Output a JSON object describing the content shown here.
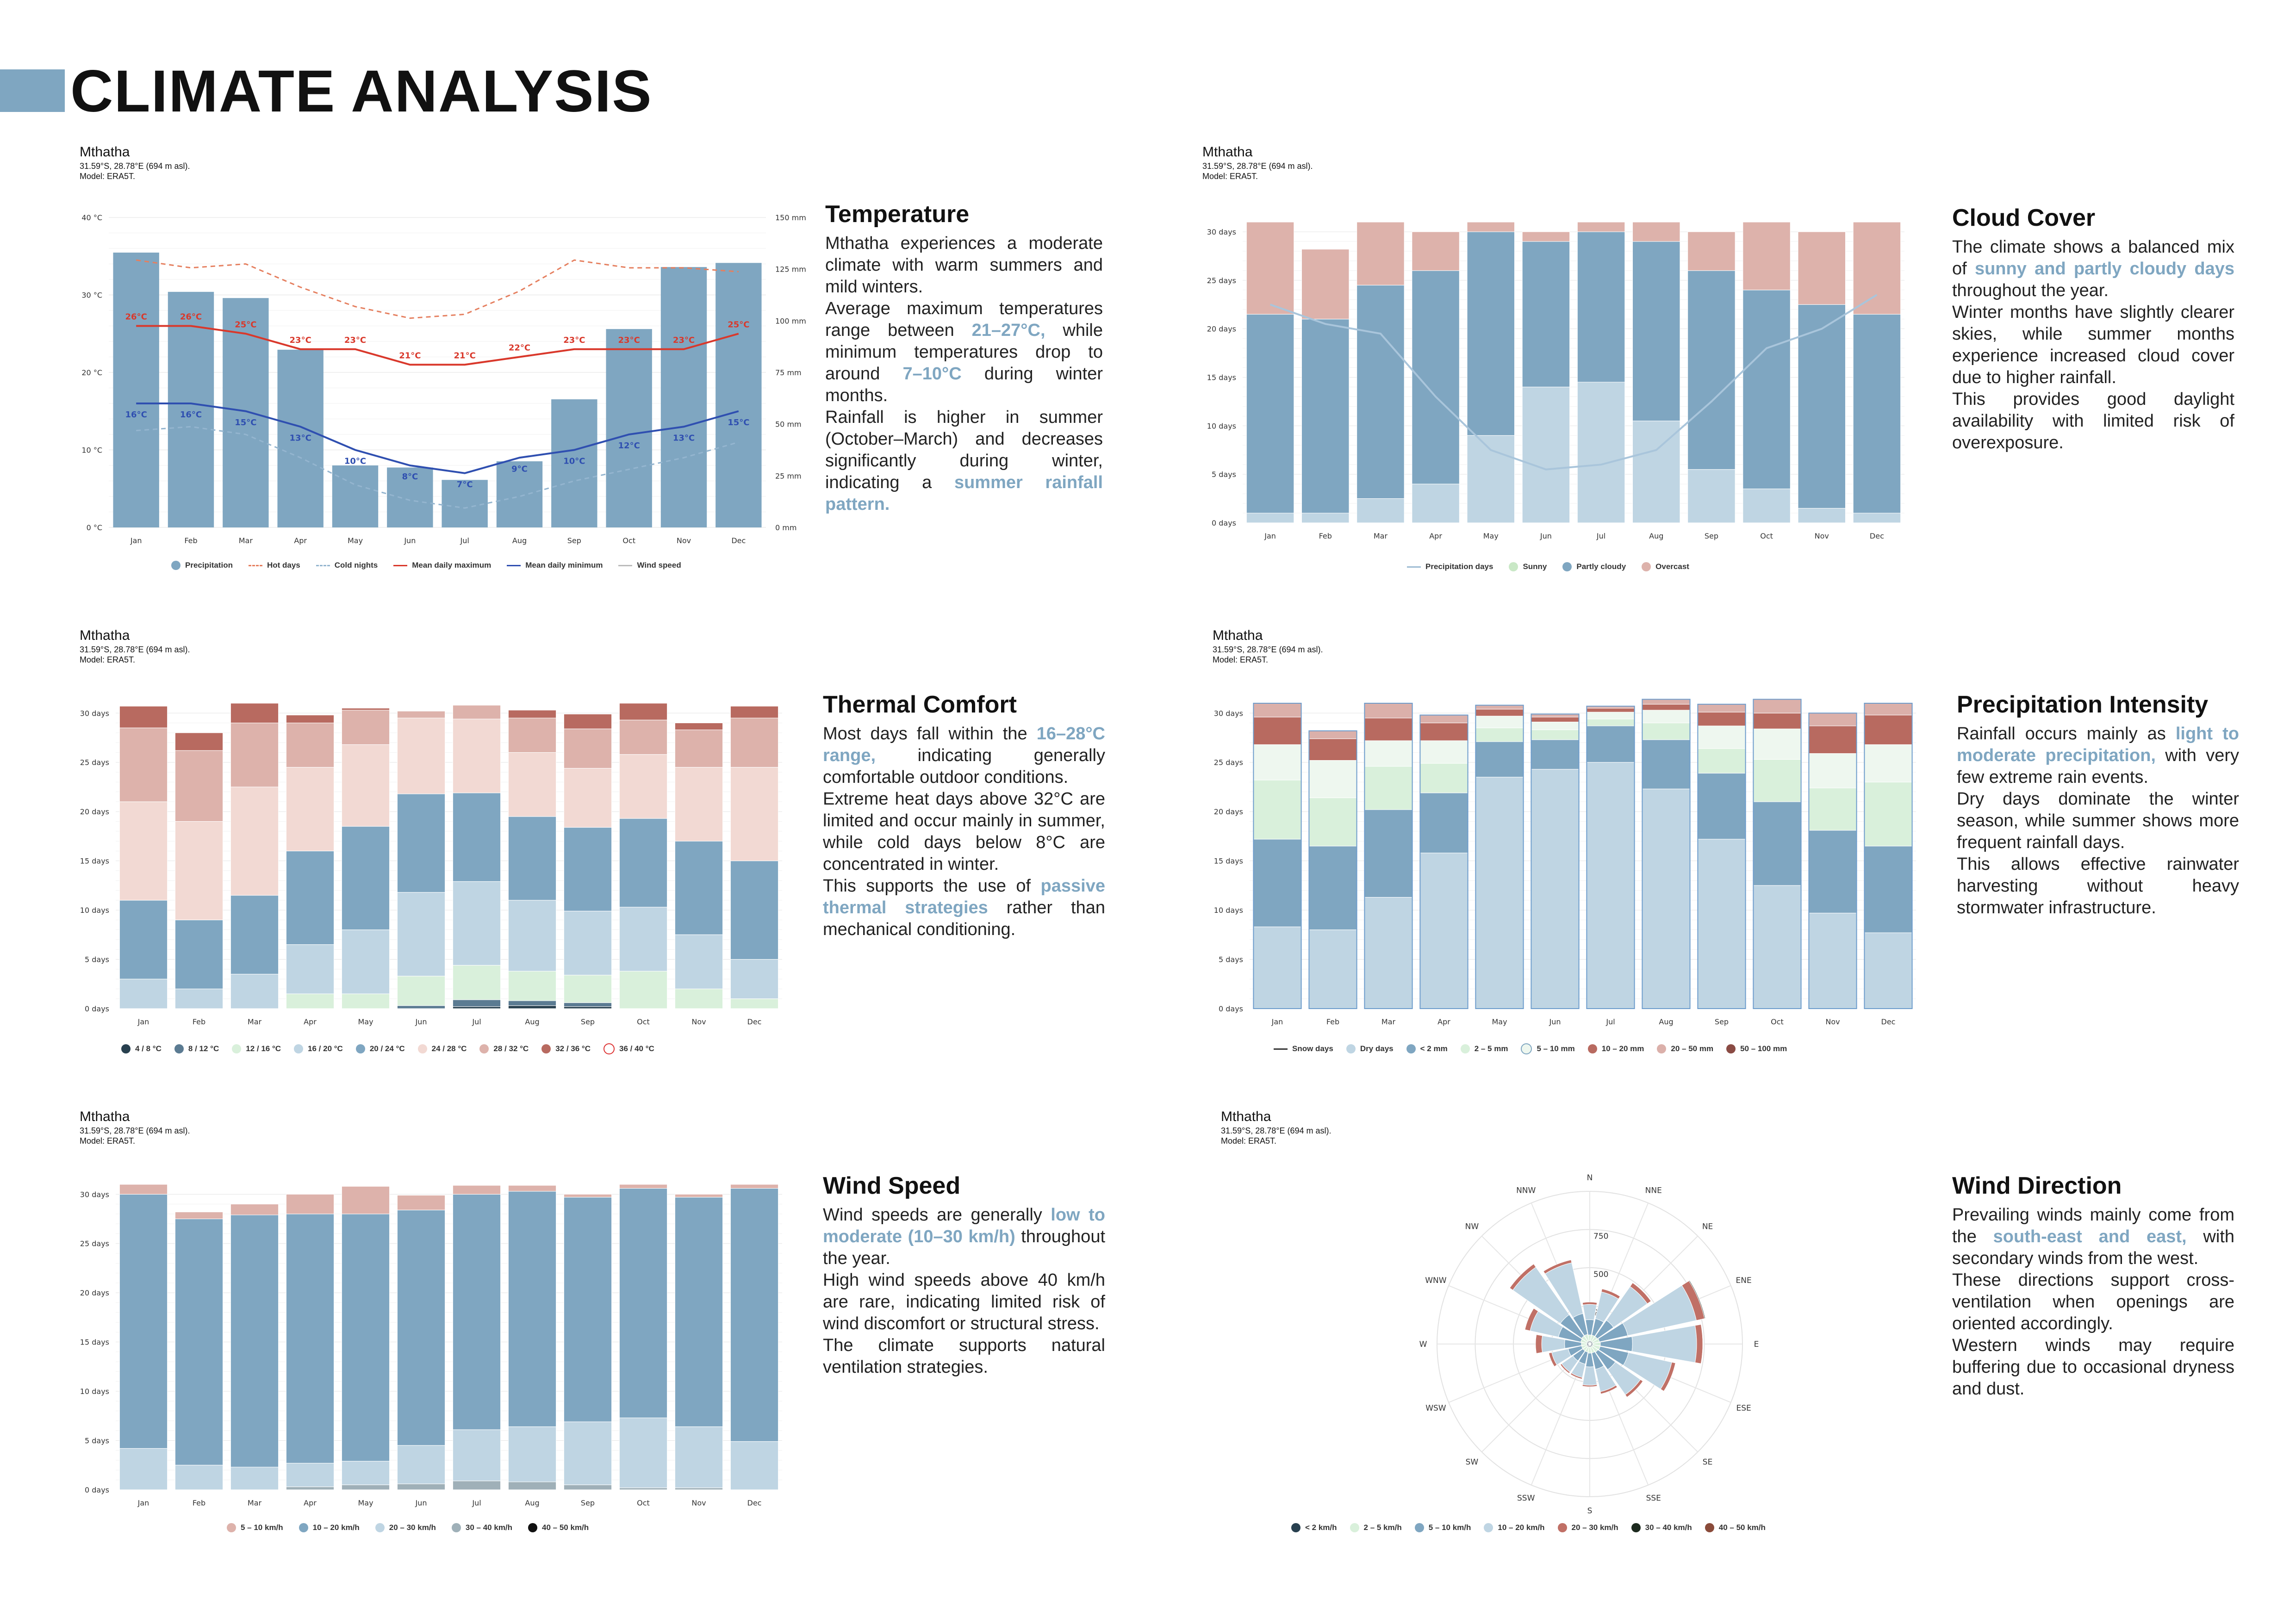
{
  "page": {
    "title": "CLIMATE ANALYSIS"
  },
  "colors": {
    "accent": "#7fa6c1",
    "hot": "#e57f5f",
    "max": "#d9382b",
    "min": "#2f4fb0",
    "cold": "#94b5cf"
  },
  "station": {
    "name": "Mthatha",
    "coords": "31.59°S, 28.78°E (694 m asl).",
    "model": "Model: ERA5T."
  },
  "temperature": {
    "heading": "Temperature",
    "text": [
      {
        "t": "Mthatha experiences a moderate climate with warm summers and mild winters.",
        "h": false
      },
      {
        "t": "Average maximum temperatures range between ",
        "h": false
      },
      {
        "t": "21–27°C,",
        "h": true
      },
      {
        "t": " while minimum temperatures drop to around ",
        "h": false
      },
      {
        "t": "7–10°C",
        "h": true
      },
      {
        "t": " during winter months.",
        "h": false
      },
      {
        "t": "Rainfall is higher in summer (October–March) and decreases significantly during winter, indicating a ",
        "h": false
      },
      {
        "t": "summer rainfall pattern.",
        "h": true
      }
    ],
    "legend": [
      "Precipitation",
      "Hot days",
      "Cold nights",
      "Mean daily maximum",
      "Mean daily minimum",
      "Wind speed"
    ],
    "y_left_ticks": [
      "0 °C",
      "10 °C",
      "20 °C",
      "30 °C",
      "40 °C"
    ],
    "y_right_ticks": [
      "0 mm",
      "25 mm",
      "50 mm",
      "75 mm",
      "100 mm",
      "125 mm",
      "150 mm"
    ]
  },
  "cloud": {
    "heading": "Cloud Cover",
    "text": [
      {
        "t": "The climate shows a balanced mix of ",
        "h": false
      },
      {
        "t": "sunny and partly cloudy days",
        "h": true
      },
      {
        "t": " throughout the year.",
        "h": false
      },
      {
        "t": "Winter months have slightly clearer skies, while summer months experience increased cloud cover due to higher rainfall.",
        "h": false
      },
      {
        "t": "This provides good daylight availability with limited risk of overexposure.",
        "h": false
      }
    ],
    "legend": [
      "Precipitation days",
      "Sunny",
      "Partly cloudy",
      "Overcast"
    ]
  },
  "thermal": {
    "heading": "Thermal Comfort",
    "text": [
      {
        "t": "Most days fall within the ",
        "h": false
      },
      {
        "t": "16–28°C range,",
        "h": true
      },
      {
        "t": " indicating generally comfortable outdoor conditions.",
        "h": false
      },
      {
        "t": "Extreme heat days above 32°C are limited and occur mainly in summer, while cold days below 8°C are concentrated in winter.",
        "h": false
      },
      {
        "t": "This supports the use of ",
        "h": false
      },
      {
        "t": "passive thermal strategies",
        "h": true
      },
      {
        "t": " rather than mechanical conditioning.",
        "h": false
      }
    ],
    "legend": [
      "4 / 8 °C",
      "8 / 12 °C",
      "12 / 16 °C",
      "16 / 20 °C",
      "20 / 24 °C",
      "24 / 28 °C",
      "28 / 32 °C",
      "32 / 36 °C",
      "36 / 40 °C"
    ]
  },
  "precip": {
    "heading": "Precipitation Intensity",
    "text": [
      {
        "t": "Rainfall occurs mainly as ",
        "h": false
      },
      {
        "t": "light to moderate precipitation,",
        "h": true
      },
      {
        "t": " with very few extreme rain events.",
        "h": false
      },
      {
        "t": "Dry days dominate the winter season, while summer shows more frequent rainfall days.",
        "h": false
      },
      {
        "t": "This allows effective rainwater harvesting without heavy stormwater infrastructure.",
        "h": false
      }
    ],
    "legend": [
      "Snow days",
      "Dry days",
      "< 2 mm",
      "2 – 5 mm",
      "5 – 10 mm",
      "10 – 20 mm",
      "20 – 50 mm",
      "50 – 100 mm"
    ]
  },
  "wind": {
    "heading": "Wind Speed",
    "text": [
      {
        "t": "Wind speeds are generally ",
        "h": false
      },
      {
        "t": "low to moderate (10–30 km/h)",
        "h": true
      },
      {
        "t": " throughout the year.",
        "h": false
      },
      {
        "t": "High wind speeds above 40 km/h are rare, indicating limited risk of wind discomfort or structural stress.",
        "h": false
      },
      {
        "t": "The climate supports natural ventilation strategies.",
        "h": false
      }
    ],
    "legend": [
      "5 – 10 km/h",
      "10 – 20 km/h",
      "20 – 30 km/h",
      "30 – 40 km/h",
      "40 – 50 km/h"
    ]
  },
  "winddir": {
    "heading": "Wind Direction",
    "text": [
      {
        "t": "Prevailing winds mainly come from the ",
        "h": false
      },
      {
        "t": "south-east and east,",
        "h": true
      },
      {
        "t": " with secondary winds from the west.",
        "h": false
      },
      {
        "t": "These directions support cross-ventilation when openings are oriented accordingly.",
        "h": false
      },
      {
        "t": "Western winds may require buffering due to occasional dryness and dust.",
        "h": false
      }
    ],
    "legend": [
      "< 2 km/h",
      "2 – 5 km/h",
      "5 – 10 km/h",
      "10 – 20 km/h",
      "20 – 30 km/h",
      "30 – 40 km/h",
      "40 – 50 km/h"
    ],
    "ring_labels": [
      "250",
      "500",
      "750"
    ]
  },
  "chart_data": [
    {
      "id": "temperature",
      "type": "bar+line",
      "categories": [
        "Jan",
        "Feb",
        "Mar",
        "Apr",
        "May",
        "Jun",
        "Jul",
        "Aug",
        "Sep",
        "Oct",
        "Nov",
        "Dec"
      ],
      "ylim_temp": [
        0,
        40
      ],
      "ylim_precip": [
        0,
        150
      ],
      "precipitation_mm": [
        133,
        114,
        111,
        86,
        30,
        29,
        23,
        32,
        62,
        96,
        126,
        128
      ],
      "mean_daily_max": [
        26,
        26,
        25,
        23,
        23,
        21,
        21,
        22,
        23,
        23,
        23,
        25
      ],
      "mean_daily_min": [
        16,
        16,
        15,
        13,
        10,
        8,
        7,
        9,
        10,
        12,
        13,
        15
      ],
      "max_labels": [
        "26°C",
        "26°C",
        "25°C",
        "23°C",
        "23°C",
        "21°C",
        "21°C",
        "22°C",
        "23°C",
        "23°C",
        "23°C",
        "25°C"
      ],
      "min_labels": [
        "16°C",
        "16°C",
        "15°C",
        "13°C",
        "10°C",
        "8°C",
        "7°C",
        "9°C",
        "10°C",
        "12°C",
        "13°C",
        "15°C"
      ],
      "hot_days": [
        34.5,
        33.5,
        34,
        31,
        28.5,
        27,
        27.5,
        30.5,
        34.5,
        33.5,
        33.5,
        33
      ],
      "cold_nights": [
        12.5,
        13,
        12,
        9,
        5.5,
        3.5,
        2.5,
        4,
        6,
        7.5,
        9,
        11
      ]
    },
    {
      "id": "cloud",
      "type": "stacked_bar",
      "categories": [
        "Jan",
        "Feb",
        "Mar",
        "Apr",
        "May",
        "Jun",
        "Jul",
        "Aug",
        "Sep",
        "Oct",
        "Nov",
        "Dec"
      ],
      "ylim": [
        0,
        31
      ],
      "yticks": [
        0,
        5,
        10,
        15,
        20,
        25,
        30
      ],
      "series": [
        {
          "name": "Sunny",
          "values": [
            1,
            1,
            2.5,
            4,
            9,
            14,
            14.5,
            10.5,
            5.5,
            3.5,
            1.5,
            1
          ]
        },
        {
          "name": "Partly cloudy",
          "values": [
            20.5,
            20,
            22,
            22,
            21,
            15,
            15.5,
            18.5,
            20.5,
            20.5,
            21,
            20.5
          ]
        },
        {
          "name": "Overcast",
          "values": [
            9.5,
            7.2,
            6.5,
            4,
            1,
            1,
            1,
            2,
            4,
            7,
            7.5,
            9.5
          ]
        }
      ],
      "precipitation_days": [
        22.5,
        20.5,
        19.5,
        13,
        7.5,
        5.5,
        6,
        7.5,
        12.5,
        18,
        20,
        23.5
      ]
    },
    {
      "id": "thermal",
      "type": "stacked_bar",
      "categories": [
        "Jan",
        "Feb",
        "Mar",
        "Apr",
        "May",
        "Jun",
        "Jul",
        "Aug",
        "Sep",
        "Oct",
        "Nov",
        "Dec"
      ],
      "ylim": [
        0,
        31
      ],
      "yticks": [
        0,
        5,
        10,
        15,
        20,
        25,
        30
      ],
      "series": [
        {
          "name": "4 / 8 °C",
          "values": [
            0,
            0,
            0,
            0,
            0,
            0,
            0.2,
            0.3,
            0.2,
            0,
            0,
            0
          ]
        },
        {
          "name": "8 / 12 °C",
          "values": [
            0,
            0,
            0,
            0,
            0,
            0.3,
            0.7,
            0.5,
            0.4,
            0,
            0,
            0
          ]
        },
        {
          "name": "12 / 16 °C",
          "values": [
            0,
            0,
            0,
            1.5,
            1.5,
            3,
            3.5,
            3,
            2.8,
            3.8,
            2,
            1
          ]
        },
        {
          "name": "16 / 20 °C",
          "values": [
            3,
            2,
            3.5,
            5,
            6.5,
            8.5,
            8.5,
            7.2,
            6.5,
            6.5,
            5.5,
            4
          ]
        },
        {
          "name": "20 / 24 °C",
          "values": [
            8,
            7,
            8,
            9.5,
            10.5,
            10,
            9,
            8.5,
            8.5,
            9,
            9.5,
            10
          ]
        },
        {
          "name": "24 / 28 °C",
          "values": [
            10,
            10,
            11,
            8.5,
            8.3,
            7.7,
            7.5,
            6.5,
            6,
            6.5,
            7.5,
            9.5
          ]
        },
        {
          "name": "28 / 32 °C",
          "values": [
            7.5,
            7.2,
            6.5,
            4.5,
            3.5,
            0.7,
            1.4,
            3.5,
            4,
            3.5,
            3.8,
            5
          ]
        },
        {
          "name": "32 / 36 °C",
          "values": [
            2.2,
            1.8,
            2,
            0.8,
            0.2,
            0,
            0,
            0.8,
            1.5,
            1.7,
            0.7,
            1.2
          ]
        },
        {
          "name": "36 / 40 °C",
          "values": [
            0,
            0,
            0,
            0,
            0,
            0,
            0,
            0,
            0,
            0,
            0,
            0
          ]
        }
      ]
    },
    {
      "id": "precip",
      "type": "stacked_bar",
      "categories": [
        "Jan",
        "Feb",
        "Mar",
        "Apr",
        "May",
        "Jun",
        "Jul",
        "Aug",
        "Sep",
        "Oct",
        "Nov",
        "Dec"
      ],
      "ylim": [
        0,
        31
      ],
      "yticks": [
        0,
        5,
        10,
        15,
        20,
        25,
        30
      ],
      "series": [
        {
          "name": "Snow days",
          "values": [
            0,
            0,
            0,
            0,
            0,
            0,
            0,
            0,
            0,
            0,
            0,
            0
          ]
        },
        {
          "name": "Dry days",
          "values": [
            8.3,
            8,
            11.3,
            15.8,
            23.5,
            24.3,
            25,
            22.3,
            17.2,
            12.5,
            9.7,
            7.7
          ]
        },
        {
          "name": "< 2 mm",
          "values": [
            8.9,
            8.5,
            8.9,
            6.1,
            3.6,
            3,
            3.7,
            5,
            6.7,
            8.5,
            8.4,
            8.8
          ]
        },
        {
          "name": "2 – 5 mm",
          "values": [
            6,
            4.9,
            4.4,
            3,
            1.4,
            1,
            0.7,
            1.7,
            2.5,
            4.3,
            4.3,
            6.5
          ]
        },
        {
          "name": "5 – 10 mm",
          "values": [
            3.6,
            3.8,
            2.6,
            2.3,
            1.2,
            0.8,
            0.7,
            1.3,
            2.3,
            3.1,
            3.5,
            3.8
          ]
        },
        {
          "name": "10 – 20 mm",
          "values": [
            2.8,
            2.2,
            2.3,
            1.8,
            0.7,
            0.5,
            0.4,
            0.6,
            1.4,
            1.6,
            2.8,
            3
          ]
        },
        {
          "name": "20 – 50 mm",
          "values": [
            1.4,
            0.8,
            1.5,
            0.8,
            0.4,
            0.3,
            0.2,
            0.5,
            0.8,
            1.4,
            1.3,
            1.2
          ]
        },
        {
          "name": "50 – 100 mm",
          "values": [
            0,
            0,
            0,
            0,
            0,
            0,
            0,
            0,
            0,
            0,
            0,
            0
          ]
        }
      ]
    },
    {
      "id": "wind",
      "type": "stacked_bar",
      "categories": [
        "Jan",
        "Feb",
        "Mar",
        "Apr",
        "May",
        "Jun",
        "Jul",
        "Aug",
        "Sep",
        "Oct",
        "Nov",
        "Dec"
      ],
      "ylim": [
        0,
        31
      ],
      "yticks": [
        0,
        5,
        10,
        15,
        20,
        25,
        30
      ],
      "series": [
        {
          "name": "40 – 50 km/h",
          "values": [
            0,
            0,
            0,
            0,
            0,
            0,
            0,
            0,
            0,
            0,
            0,
            0
          ]
        },
        {
          "name": "30 – 40 km/h",
          "values": [
            0,
            0,
            0,
            0.3,
            0.5,
            0.6,
            0.9,
            0.8,
            0.5,
            0.2,
            0.2,
            0
          ]
        },
        {
          "name": "20 – 30 km/h",
          "values": [
            4.2,
            2.5,
            2.3,
            2.4,
            2.4,
            3.9,
            5.2,
            5.6,
            6.4,
            7.1,
            6.2,
            4.9
          ]
        },
        {
          "name": "10 – 20 km/h",
          "values": [
            25.8,
            25,
            25.6,
            25.3,
            25.1,
            23.9,
            23.9,
            23.9,
            22.8,
            23.3,
            23.3,
            25.7
          ]
        },
        {
          "name": "5 – 10 km/h",
          "values": [
            1,
            0.7,
            1.1,
            2,
            2.8,
            1.5,
            0.9,
            0.6,
            0.3,
            0.4,
            0.3,
            0.4
          ]
        }
      ]
    },
    {
      "id": "winddir",
      "type": "wind_rose",
      "directions": [
        "N",
        "NNE",
        "NE",
        "ENE",
        "E",
        "ESE",
        "SE",
        "SSE",
        "S",
        "SSW",
        "SW",
        "WSW",
        "W",
        "WNW",
        "NW",
        "NNW"
      ],
      "rmax": 1000,
      "rings": [
        250,
        500,
        750
      ],
      "series": [
        {
          "name": "< 2 km/h",
          "values": [
            20,
            20,
            20,
            20,
            20,
            20,
            20,
            20,
            20,
            20,
            20,
            20,
            20,
            20,
            20,
            20
          ]
        },
        {
          "name": "2 – 5 km/h",
          "values": [
            40,
            40,
            40,
            45,
            50,
            50,
            45,
            40,
            40,
            35,
            35,
            35,
            35,
            40,
            45,
            45
          ]
        },
        {
          "name": "5 – 10 km/h",
          "values": [
            100,
            110,
            130,
            190,
            210,
            190,
            140,
            110,
            90,
            80,
            80,
            90,
            110,
            150,
            170,
            140
          ]
        },
        {
          "name": "10 – 20 km/h",
          "values": [
            100,
            180,
            270,
            460,
            420,
            290,
            200,
            150,
            120,
            90,
            90,
            110,
            150,
            190,
            380,
            340
          ]
        },
        {
          "name": "20 – 30 km/h",
          "values": [
            15,
            20,
            30,
            55,
            40,
            25,
            20,
            15,
            10,
            10,
            10,
            20,
            40,
            35,
            25,
            20
          ]
        },
        {
          "name": "30 – 40 km/h",
          "values": [
            0,
            0,
            3,
            5,
            3,
            0,
            0,
            0,
            0,
            0,
            0,
            0,
            0,
            0,
            0,
            0
          ]
        },
        {
          "name": "40 – 50 km/h",
          "values": [
            0,
            0,
            0,
            0,
            0,
            0,
            0,
            0,
            0,
            0,
            0,
            0,
            0,
            0,
            0,
            0
          ]
        }
      ]
    }
  ]
}
